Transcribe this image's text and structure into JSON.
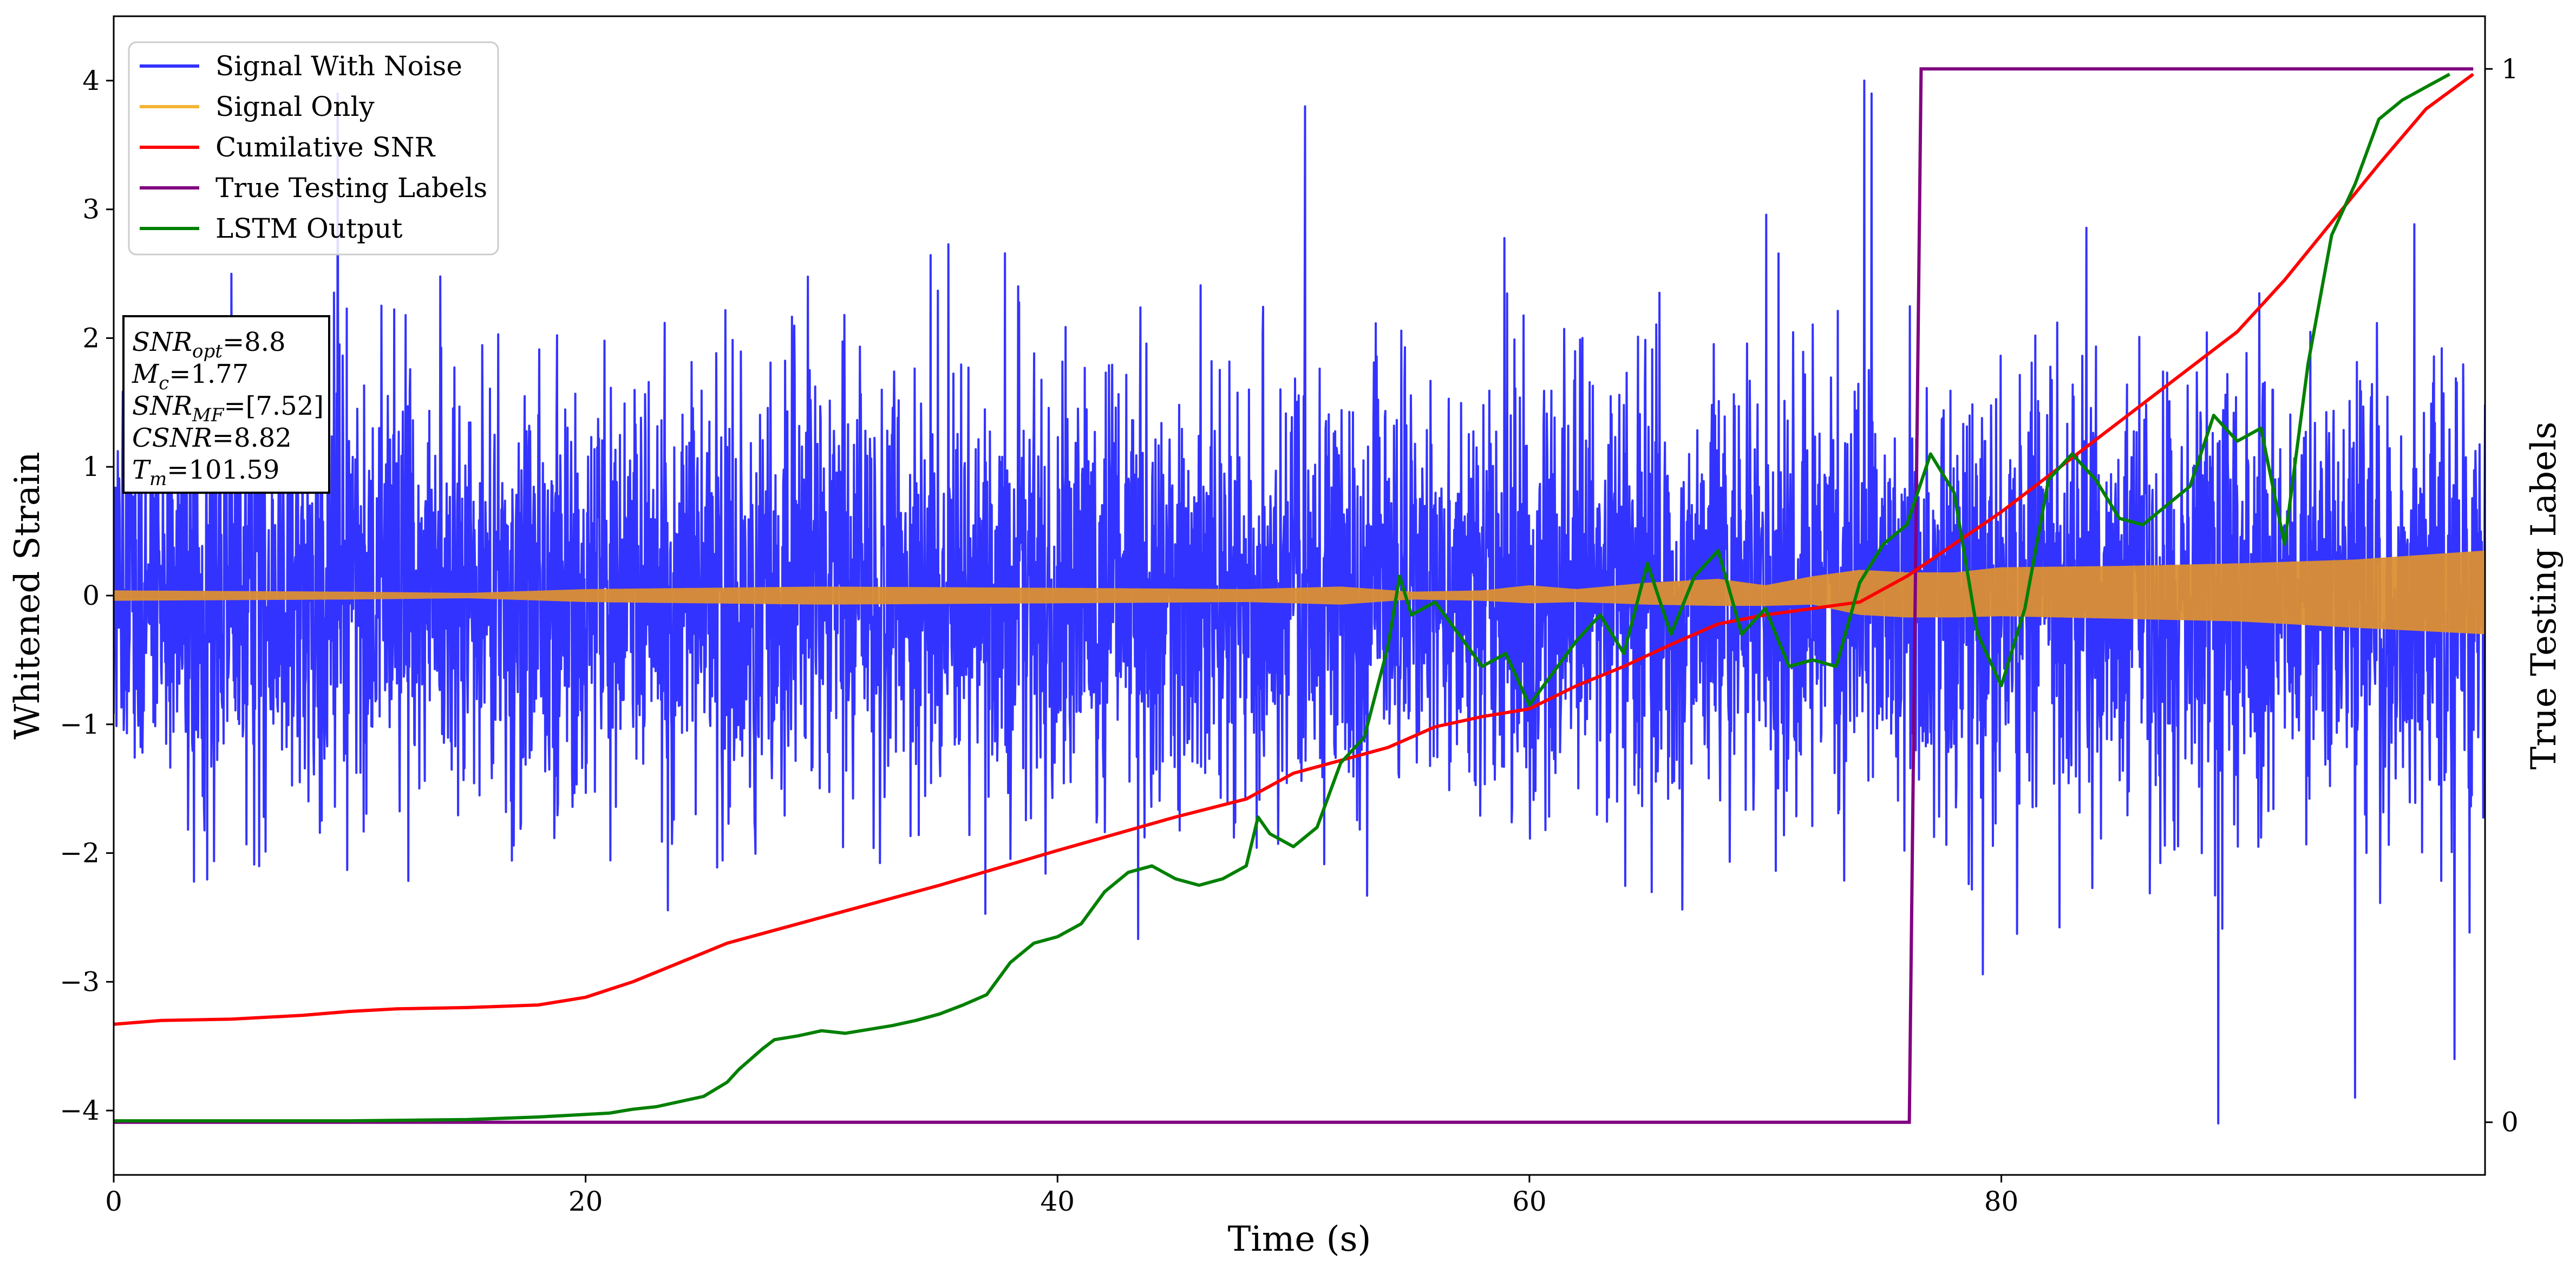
{
  "chart_data": {
    "type": "line",
    "xlabel": "Time (s)",
    "ylabel": "Whitened Strain",
    "y2label": "True Testing Labels",
    "xlim": [
      0,
      100.5
    ],
    "ylim": [
      -4.5,
      4.5
    ],
    "y2lim": [
      -0.05,
      1.05
    ],
    "xticks": [
      0,
      20,
      40,
      60,
      80
    ],
    "yticks": [
      -4,
      -3,
      -2,
      -1,
      0,
      1,
      2,
      3,
      4
    ],
    "y2ticks": [
      0,
      1
    ],
    "legend": {
      "placement": "top-left",
      "entries": [
        "Signal With Noise",
        "Signal Only",
        "Cumilative SNR",
        "True Testing Labels",
        "LSTM Output"
      ]
    },
    "annotation": {
      "placement": "upper-left",
      "lines": [
        {
          "base": "SNR",
          "sub": "opt",
          "value": "=8.8"
        },
        {
          "base": "M",
          "sub": "c",
          "value": "=1.77"
        },
        {
          "base": "SNR",
          "sub": "MF",
          "value": "=[7.52]"
        },
        {
          "base": "CSNR",
          "sub": "",
          "value": "=8.82"
        },
        {
          "base": "T",
          "sub": "m",
          "value": "=101.59"
        }
      ]
    },
    "series": [
      {
        "name": "Signal With Noise",
        "color": "#3333ff",
        "axis": "left",
        "style": "noise",
        "x_range": [
          0,
          100.5
        ],
        "std": 0.85,
        "peaks": [
          [
            9.5,
            3.9
          ],
          [
            50.5,
            3.8
          ],
          [
            74.2,
            4.0
          ],
          [
            74.5,
            3.9
          ],
          [
            89.2,
            -4.1
          ],
          [
            95,
            -3.9
          ],
          [
            99.2,
            -3.6
          ]
        ]
      },
      {
        "name": "Signal Only",
        "color": "#f4b433",
        "axis": "left",
        "style": "envelope",
        "x": [
          0,
          10,
          15,
          20,
          30,
          40,
          48,
          52,
          55,
          58,
          60,
          62,
          65,
          68,
          70,
          72,
          74,
          76,
          78,
          80,
          85,
          90,
          95,
          100.5
        ],
        "upper": [
          0.04,
          0.03,
          0.02,
          0.05,
          0.07,
          0.06,
          0.05,
          0.07,
          0.03,
          0.04,
          0.08,
          0.05,
          0.1,
          0.13,
          0.08,
          0.15,
          0.2,
          0.18,
          0.18,
          0.22,
          0.23,
          0.25,
          0.28,
          0.35
        ],
        "lower": [
          -0.04,
          -0.03,
          -0.02,
          -0.05,
          -0.07,
          -0.06,
          -0.05,
          -0.07,
          -0.03,
          -0.04,
          -0.06,
          -0.05,
          -0.07,
          -0.08,
          -0.08,
          -0.07,
          -0.15,
          -0.17,
          -0.17,
          -0.16,
          -0.18,
          -0.2,
          -0.25,
          -0.3
        ]
      },
      {
        "name": "Cumilative SNR",
        "color": "#ff0000",
        "axis": "left",
        "x": [
          0,
          2,
          5,
          8,
          10,
          12,
          15,
          18,
          20,
          22,
          24,
          26,
          28,
          30,
          35,
          40,
          45,
          48,
          50,
          52,
          54,
          56,
          58,
          60,
          62,
          64,
          66,
          68,
          70,
          72,
          74,
          76,
          78,
          80,
          85,
          90,
          92,
          94,
          96,
          98,
          100
        ],
        "y": [
          -3.33,
          -3.3,
          -3.29,
          -3.26,
          -3.23,
          -3.21,
          -3.2,
          -3.18,
          -3.12,
          -3.0,
          -2.85,
          -2.7,
          -2.6,
          -2.5,
          -2.25,
          -1.98,
          -1.72,
          -1.58,
          -1.38,
          -1.28,
          -1.18,
          -1.02,
          -0.94,
          -0.88,
          -0.7,
          -0.55,
          -0.38,
          -0.22,
          -0.15,
          -0.1,
          -0.05,
          0.15,
          0.4,
          0.65,
          1.35,
          2.05,
          2.45,
          2.9,
          3.35,
          3.78,
          4.05
        ]
      },
      {
        "name": "True Testing Labels",
        "color": "#800080",
        "axis": "right",
        "x": [
          0,
          76.1,
          76.6,
          100
        ],
        "y": [
          0,
          0,
          1,
          1
        ]
      },
      {
        "name": "LSTM Output",
        "color": "#008000",
        "axis": "left",
        "x": [
          0,
          10,
          15,
          18,
          19,
          20,
          21,
          22,
          23,
          24,
          25,
          26,
          26.5,
          27,
          27.5,
          28,
          29,
          30,
          31,
          32,
          33,
          34,
          35,
          36,
          37,
          38,
          39,
          40,
          41,
          42,
          43,
          44,
          45,
          46,
          47,
          48,
          48.5,
          49,
          50,
          51,
          52,
          53,
          54,
          54.5,
          55,
          56,
          57,
          58,
          59,
          60,
          61,
          62,
          63,
          64,
          65,
          66,
          67,
          68,
          69,
          70,
          71,
          72,
          73,
          74,
          75,
          76,
          77,
          78,
          79,
          80,
          81,
          82,
          83,
          84,
          85,
          86,
          87,
          88,
          89,
          90,
          91,
          92,
          93,
          94,
          95,
          96,
          97,
          98,
          99
        ],
        "y": [
          -4.08,
          -4.08,
          -4.07,
          -4.05,
          -4.04,
          -4.03,
          -4.02,
          -3.99,
          -3.97,
          -3.93,
          -3.89,
          -3.78,
          -3.68,
          -3.6,
          -3.52,
          -3.45,
          -3.42,
          -3.38,
          -3.4,
          -3.37,
          -3.34,
          -3.3,
          -3.25,
          -3.18,
          -3.1,
          -2.85,
          -2.7,
          -2.65,
          -2.55,
          -2.3,
          -2.15,
          -2.1,
          -2.2,
          -2.25,
          -2.2,
          -2.1,
          -1.72,
          -1.85,
          -1.95,
          -1.8,
          -1.3,
          -1.1,
          -0.4,
          0.15,
          -0.15,
          -0.05,
          -0.3,
          -0.55,
          -0.45,
          -0.85,
          -0.6,
          -0.35,
          -0.15,
          -0.45,
          0.25,
          -0.3,
          0.15,
          0.35,
          -0.3,
          -0.1,
          -0.55,
          -0.5,
          -0.55,
          0.1,
          0.4,
          0.55,
          1.1,
          0.8,
          -0.3,
          -0.7,
          -0.1,
          0.9,
          1.1,
          0.9,
          0.6,
          0.55,
          0.7,
          0.85,
          1.4,
          1.2,
          1.3,
          0.4,
          1.8,
          2.8,
          3.2,
          3.7,
          3.85,
          3.95,
          4.05
        ]
      }
    ]
  }
}
